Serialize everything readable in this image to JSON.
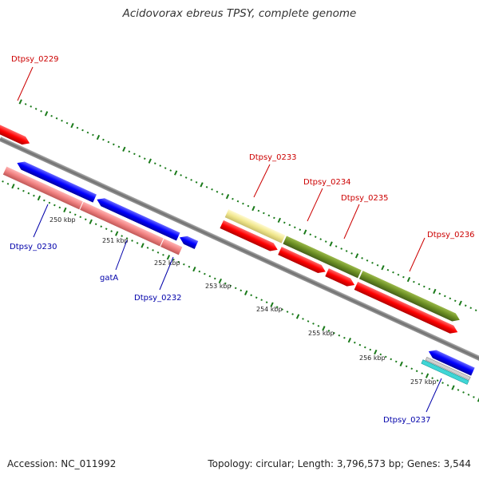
{
  "title": "Acidovorax ebreus TPSY, complete genome",
  "accession": "Accession: NC_011992",
  "summary": "Topology: circular; Length: 3,796,573 bp; Genes: 3,544",
  "colors": {
    "forward_label": "#cc0000",
    "reverse_label": "#0000aa",
    "backbone": "#808080",
    "tick": "#1a7a1a",
    "red_gene": "#ff0000",
    "blue_gene": "#0000ff",
    "pink_gene": "#f08080",
    "olive_gene": "#6b8e23",
    "khaki_gene": "#f0e68c",
    "cyan_gene": "#20c8c8",
    "grey_gene": "#c8c8c8"
  },
  "scale_labels": [
    "250 kbp",
    "251 kbp",
    "252 kbp",
    "253 kbp",
    "254 kbp",
    "255 kbp",
    "256 kbp",
    "257 kbp"
  ],
  "gene_labels": {
    "forward": [
      "Dtpsy_0229",
      "Dtpsy_0233",
      "Dtpsy_0234",
      "Dtpsy_0235",
      "Dtpsy_0236"
    ],
    "reverse": [
      "Dtpsy_0230",
      "gatA",
      "Dtpsy_0232",
      "Dtpsy_0237"
    ]
  }
}
